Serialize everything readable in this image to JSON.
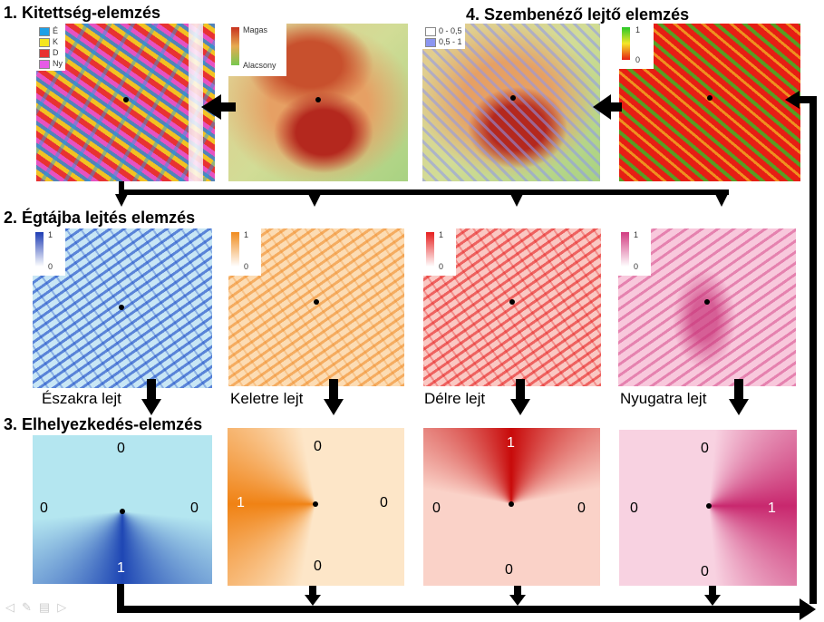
{
  "titles": {
    "t1": "1. Kitettség-elemzés",
    "t2": "2. Égtájba lejtés elemzés",
    "t3": "3. Elhelyezkedés-elemzés",
    "t4": "4. Szembenéző lejtő elemzés"
  },
  "aspect_legend": [
    {
      "label": "É",
      "color": "#1ea0e6"
    },
    {
      "label": "K",
      "color": "#f5e61e"
    },
    {
      "label": "D",
      "color": "#e83232"
    },
    {
      "label": "Ny",
      "color": "#e65ae6"
    }
  ],
  "dem_legend": {
    "high": "Magas",
    "low": "Alacsony"
  },
  "facing_legend": [
    {
      "label": "0 - 0,5",
      "color": "#ffffff"
    },
    {
      "label": "0,5 - 1",
      "color": "#8c96f0"
    }
  ],
  "scale_labels": {
    "max": "1",
    "min": "0"
  },
  "direction_captions": {
    "north": "Északra lejt",
    "east": "Keletre lejt",
    "south": "Délre lejt",
    "west": "Nyugatra lejt"
  },
  "location_values": {
    "north": {
      "top": "0",
      "left": "0",
      "right": "0",
      "bottom": "1"
    },
    "east": {
      "top": "0",
      "left": "1",
      "right": "0",
      "bottom": "0"
    },
    "south": {
      "top": "1",
      "left": "0",
      "right": "0",
      "bottom": "0"
    },
    "west": {
      "top": "0",
      "left": "0",
      "right": "1",
      "bottom": "0"
    }
  },
  "colors": {
    "north": "#1e50c8",
    "east": "#f0961e",
    "south": "#e62828",
    "west": "#d23c82",
    "arrow": "#000000"
  }
}
